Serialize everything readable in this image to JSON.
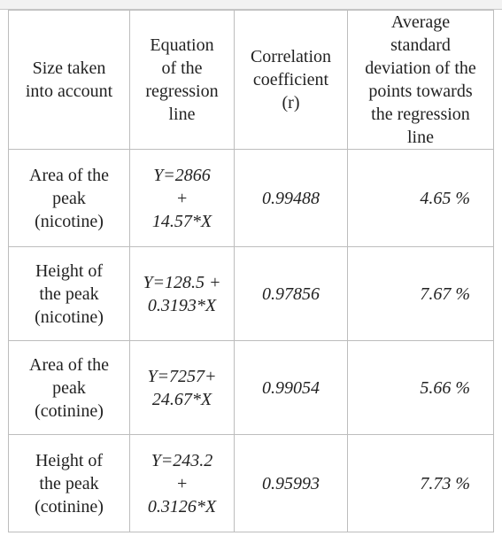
{
  "table": {
    "headers": [
      "Size taken\ninto account",
      "Equation\nof the\nregression\nline",
      "Correlation\ncoefficient\n(r)",
      "Average\nstandard\ndeviation of the\npoints towards\nthe regression\nline"
    ],
    "rows": [
      {
        "size": "Area of the\npeak\n(nicotine)",
        "equation": "Y=2866\n+\n14.57*X",
        "r": "0.99488",
        "deviation": "4.65 %"
      },
      {
        "size": "Height of\nthe peak\n(nicotine)",
        "equation": "Y=128.5 +\n0.3193*X",
        "r": "0.97856",
        "deviation": "7.67 %"
      },
      {
        "size": "Area of the\npeak\n(cotinine)",
        "equation": "Y=7257+\n24.67*X",
        "r": "0.99054",
        "deviation": "5.66 %"
      },
      {
        "size": "Height of\nthe peak\n(cotinine)",
        "equation": "Y=243.2\n+\n0.3126*X",
        "r": "0.95993",
        "deviation": "7.73 %"
      }
    ]
  }
}
